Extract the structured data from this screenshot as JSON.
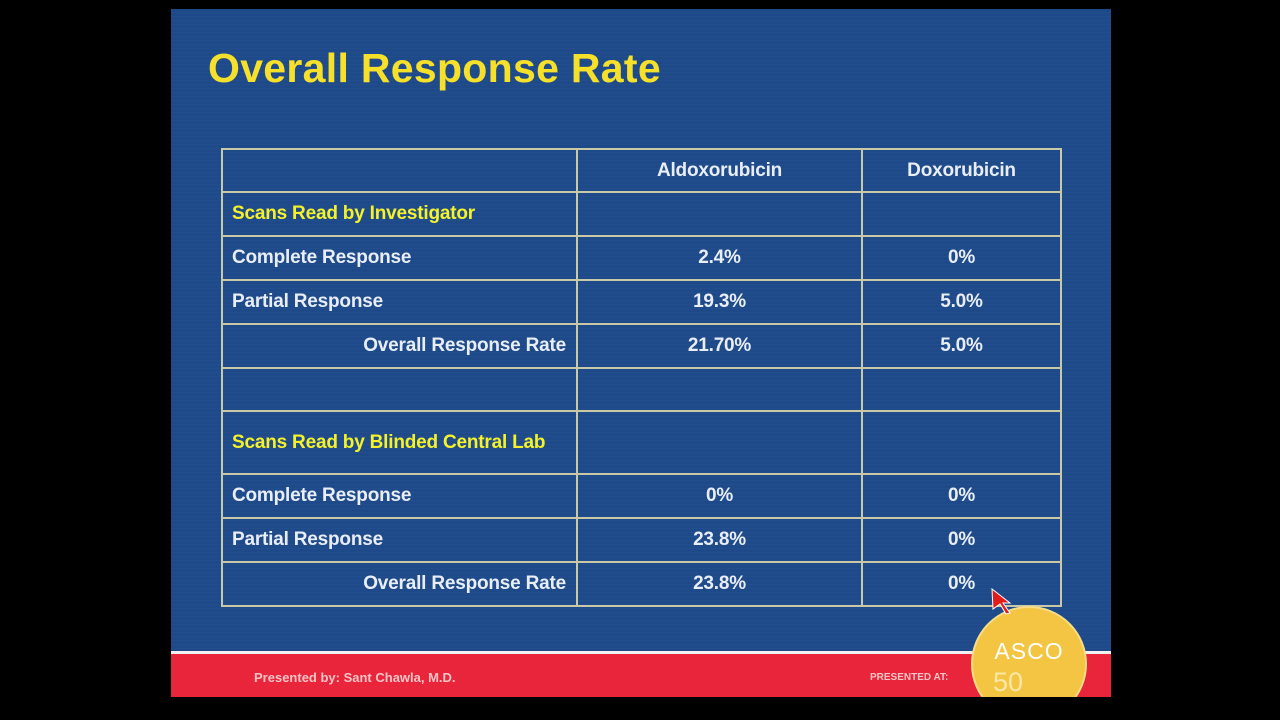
{
  "slide": {
    "title": "Overall Response Rate",
    "background_color": "#1e4a8a",
    "title_color": "#f6e02a"
  },
  "table": {
    "headers": [
      "",
      "Aldoxorubicin",
      "Doxorubicin"
    ],
    "rows": [
      {
        "label": "Scans Read by Investigator",
        "kind": "section",
        "values": [
          "",
          ""
        ]
      },
      {
        "label": "Complete Response",
        "kind": "row",
        "values": [
          "2.4%",
          "0%"
        ]
      },
      {
        "label": "Partial Response",
        "kind": "row",
        "values": [
          "19.3%",
          "5.0%"
        ]
      },
      {
        "label": "Overall Response Rate",
        "kind": "total",
        "values": [
          "21.70%",
          "5.0%"
        ]
      },
      {
        "label": "",
        "kind": "blank",
        "values": [
          "",
          ""
        ]
      },
      {
        "label": "Scans Read by Blinded Central Lab",
        "kind": "section",
        "values": [
          "",
          ""
        ]
      },
      {
        "label": "Complete Response",
        "kind": "row",
        "values": [
          "0%",
          "0%"
        ]
      },
      {
        "label": "Partial Response",
        "kind": "row",
        "values": [
          "23.8%",
          "0%"
        ]
      },
      {
        "label": "Overall Response Rate",
        "kind": "total",
        "values": [
          "23.8%",
          "0%"
        ]
      }
    ]
  },
  "footer": {
    "presenter": "Presented by: Sant Chawla, M.D.",
    "presented_at": "PRESENTED AT:",
    "badge_text": "ASCO",
    "badge_year": "50",
    "bar_color": "#e8253b"
  }
}
